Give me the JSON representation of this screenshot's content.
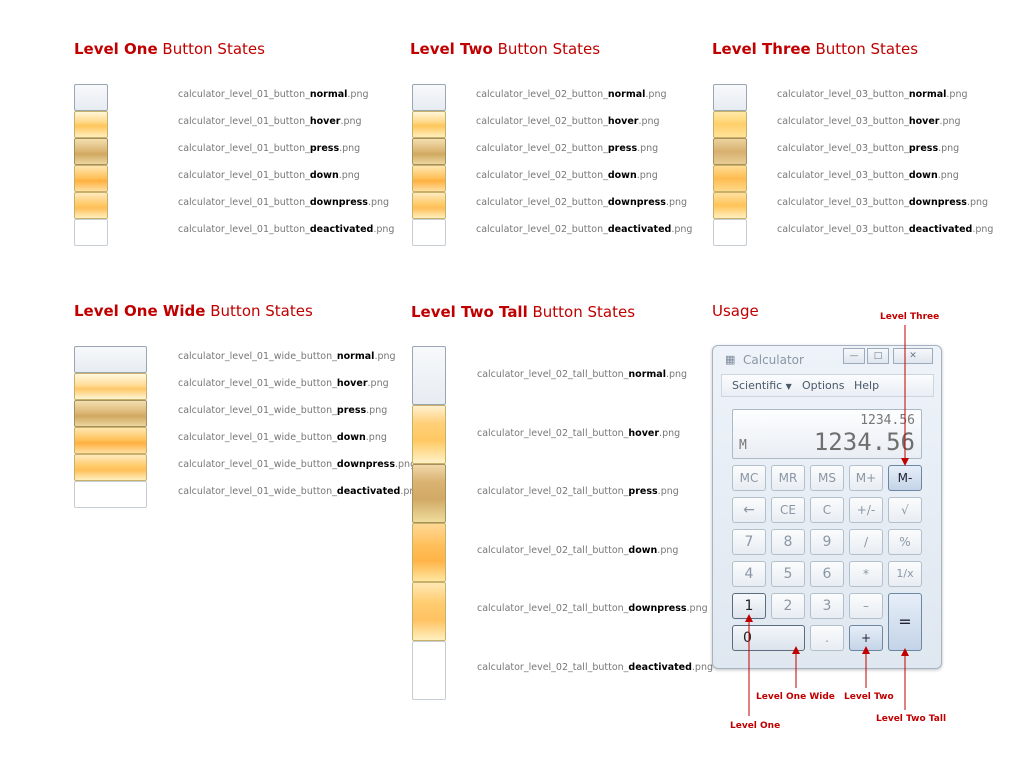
{
  "sections": {
    "level_one": {
      "title_bold": "Level One",
      "title_rest": " Button States",
      "files": [
        {
          "prefix": "calculator_level_01_button_",
          "state": "normal",
          "ext": ".png"
        },
        {
          "prefix": "calculator_level_01_button_",
          "state": "hover",
          "ext": ".png"
        },
        {
          "prefix": "calculator_level_01_button_",
          "state": "press",
          "ext": ".png"
        },
        {
          "prefix": "calculator_level_01_button_",
          "state": "down",
          "ext": ".png"
        },
        {
          "prefix": "calculator_level_01_button_",
          "state": "downpress",
          "ext": ".png"
        },
        {
          "prefix": "calculator_level_01_button_",
          "state": "deactivated",
          "ext": ".png"
        }
      ]
    },
    "level_two": {
      "title_bold": "Level Two",
      "title_rest": " Button States",
      "files": [
        {
          "prefix": "calculator_level_02_button_",
          "state": "normal",
          "ext": ".png"
        },
        {
          "prefix": "calculator_level_02_button_",
          "state": "hover",
          "ext": ".png"
        },
        {
          "prefix": "calculator_level_02_button_",
          "state": "press",
          "ext": ".png"
        },
        {
          "prefix": "calculator_level_02_button_",
          "state": "down",
          "ext": ".png"
        },
        {
          "prefix": "calculator_level_02_button_",
          "state": "downpress",
          "ext": ".png"
        },
        {
          "prefix": "calculator_level_02_button_",
          "state": "deactivated",
          "ext": ".png"
        }
      ]
    },
    "level_three": {
      "title_bold": "Level Three",
      "title_rest": " Button States",
      "files": [
        {
          "prefix": "calculator_level_03_button_",
          "state": "normal",
          "ext": ".png"
        },
        {
          "prefix": "calculator_level_03_button_",
          "state": "hover",
          "ext": ".png"
        },
        {
          "prefix": "calculator_level_03_button_",
          "state": "press",
          "ext": ".png"
        },
        {
          "prefix": "calculator_level_03_button_",
          "state": "down",
          "ext": ".png"
        },
        {
          "prefix": "calculator_level_03_button_",
          "state": "downpress",
          "ext": ".png"
        },
        {
          "prefix": "calculator_level_03_button_",
          "state": "deactivated",
          "ext": ".png"
        }
      ]
    },
    "level_one_wide": {
      "title_bold": "Level One Wide",
      "title_rest": " Button States",
      "files": [
        {
          "prefix": "calculator_level_01_wide_button_",
          "state": "normal",
          "ext": ".png"
        },
        {
          "prefix": "calculator_level_01_wide_button_",
          "state": "hover",
          "ext": ".png"
        },
        {
          "prefix": "calculator_level_01_wide_button_",
          "state": "press",
          "ext": ".png"
        },
        {
          "prefix": "calculator_level_01_wide_button_",
          "state": "down",
          "ext": ".png"
        },
        {
          "prefix": "calculator_level_01_wide_button_",
          "state": "downpress",
          "ext": ".png"
        },
        {
          "prefix": "calculator_level_01_wide_button_",
          "state": "deactivated",
          "ext": ".png"
        }
      ]
    },
    "level_two_tall": {
      "title_bold": "Level Two Tall",
      "title_rest": " Button States",
      "files": [
        {
          "prefix": "calculator_level_02_tall_button_",
          "state": "normal",
          "ext": ".png"
        },
        {
          "prefix": "calculator_level_02_tall_button_",
          "state": "hover",
          "ext": ".png"
        },
        {
          "prefix": "calculator_level_02_tall_button_",
          "state": "press",
          "ext": ".png"
        },
        {
          "prefix": "calculator_level_02_tall_button_",
          "state": "down",
          "ext": ".png"
        },
        {
          "prefix": "calculator_level_02_tall_button_",
          "state": "downpress",
          "ext": ".png"
        },
        {
          "prefix": "calculator_level_02_tall_button_",
          "state": "deactivated",
          "ext": ".png"
        }
      ]
    },
    "usage": {
      "title": "Usage"
    }
  },
  "calculator": {
    "title": "Calculator",
    "title_icon": "calculator-icon",
    "window_buttons": {
      "minimize": "—",
      "maximize": "□",
      "close": "✕"
    },
    "menu": {
      "scientific": "Scientific",
      "options": "Options",
      "help": "Help",
      "dropdown_icon": "▼"
    },
    "display": {
      "history": "1234.56",
      "value": "1234.56",
      "memory": "M"
    },
    "keys": {
      "mc": "MC",
      "mr": "MR",
      "ms": "MS",
      "mplus": "M+",
      "mminus": "M-",
      "back": "←",
      "ce": "CE",
      "c": "C",
      "plusminus": "+/-",
      "sqrt": "√",
      "k7": "7",
      "k8": "8",
      "k9": "9",
      "div": "/",
      "pct": "%",
      "k4": "4",
      "k5": "5",
      "k6": "6",
      "mul": "*",
      "recip": "1/x",
      "k1": "1",
      "k2": "2",
      "k3": "3",
      "sub": "–",
      "eq": "=",
      "k0": "0",
      "dot": ".",
      "add": "+"
    }
  },
  "annotations": {
    "level_three": "Level Three",
    "level_one_wide": "Level One Wide",
    "level_two": "Level Two",
    "level_two_tall": "Level Two Tall",
    "level_one": "Level One"
  },
  "colors": {
    "accent": "#c00000"
  }
}
